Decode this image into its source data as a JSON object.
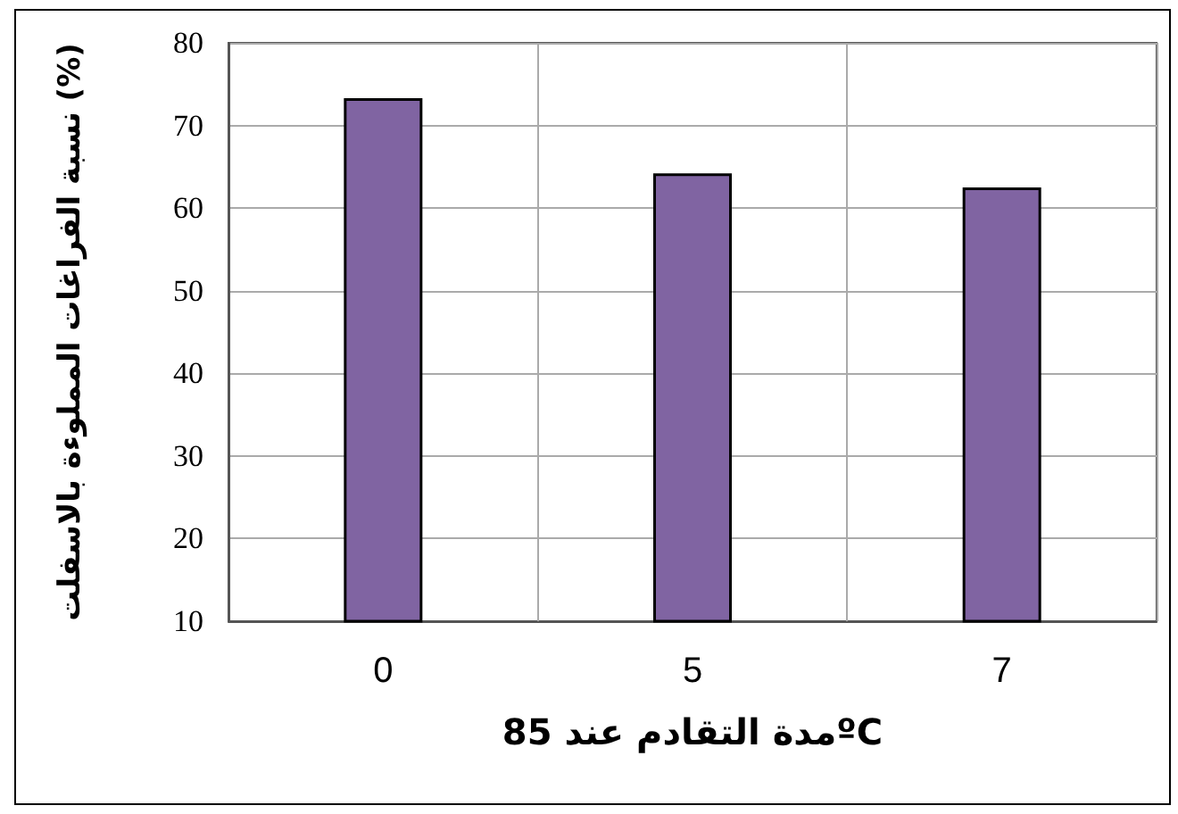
{
  "chart_data": {
    "type": "bar",
    "xlabel": "مدة التقادم عند 85ºC",
    "ylabel": "نسبة الفراغات المملوءة بالاسفلت (%)",
    "categories": [
      "0",
      "5",
      "7"
    ],
    "values": [
      73.3,
      64.2,
      62.5
    ],
    "color": "#8064a2",
    "ylim": [
      10,
      80
    ],
    "yticks": [
      10,
      20,
      30,
      40,
      50,
      60,
      70,
      80
    ],
    "grid": true
  }
}
